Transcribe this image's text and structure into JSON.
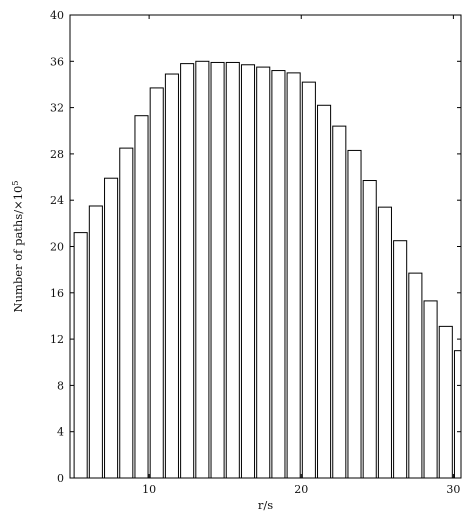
{
  "chart_data": {
    "type": "bar",
    "title": "",
    "xlabel": "r/s",
    "ylabel": "Number of paths/×10",
    "ylabel_sup": "5",
    "xlim": [
      4.8,
      30.5
    ],
    "ylim": [
      0,
      40
    ],
    "x_ticks": [
      10,
      20,
      30
    ],
    "y_ticks": [
      0,
      4,
      8,
      12,
      16,
      20,
      24,
      28,
      32,
      36,
      40
    ],
    "x": [
      5.5,
      6.5,
      7.5,
      8.5,
      9.5,
      10.5,
      11.5,
      12.5,
      13.5,
      14.5,
      15.5,
      16.5,
      17.5,
      18.5,
      19.5,
      20.5,
      21.5,
      22.5,
      23.5,
      24.5,
      25.5,
      26.5,
      27.5,
      28.5,
      29.5,
      30.5
    ],
    "values": [
      21.2,
      23.5,
      25.9,
      28.5,
      31.3,
      33.7,
      34.9,
      35.8,
      36.0,
      35.9,
      35.9,
      35.7,
      35.5,
      35.2,
      35.0,
      34.2,
      32.2,
      30.4,
      28.3,
      25.7,
      23.4,
      20.5,
      17.7,
      15.3,
      13.1,
      11.0
    ],
    "grid": false,
    "legend": "none"
  }
}
